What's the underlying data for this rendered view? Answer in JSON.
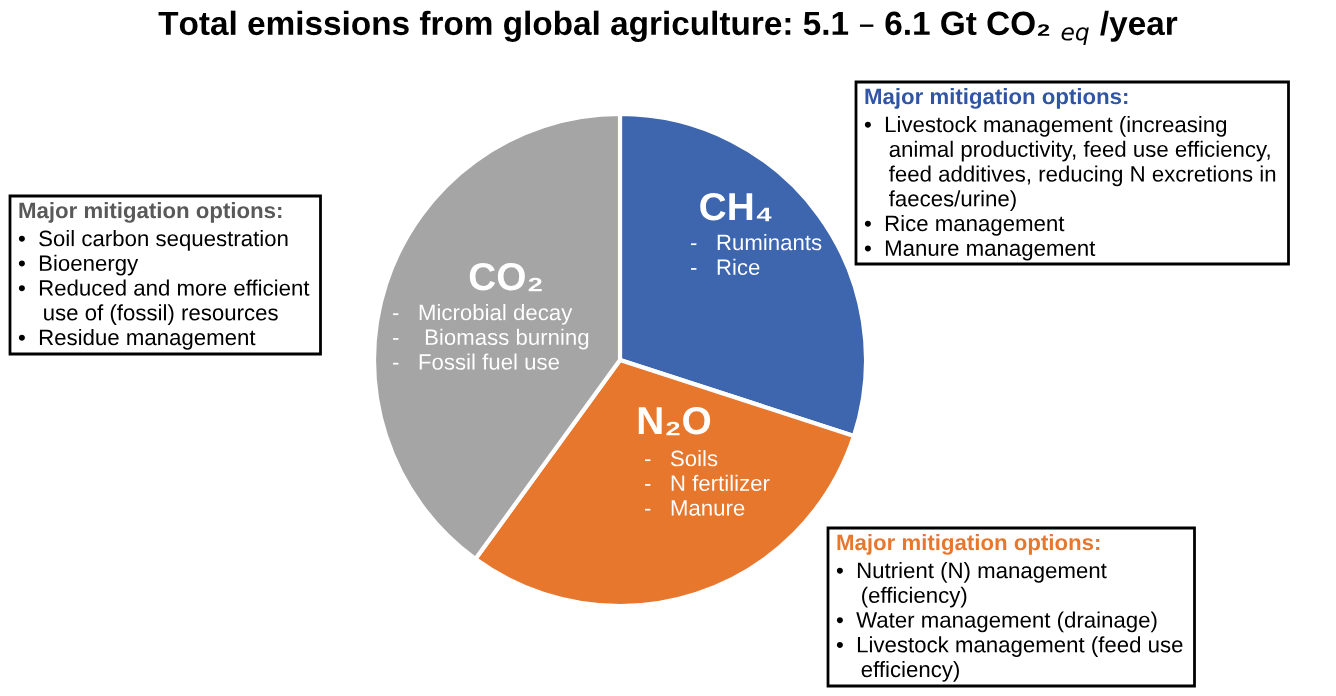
{
  "chart_data": {
    "type": "pie",
    "title": "Total emissions from global agriculture: 5.1 – 6.1 Gt CO₂ $_{eq}$ /year",
    "categories": [
      "CH₄",
      "N₂O",
      "CO₂"
    ],
    "values": [
      30,
      30,
      40
    ],
    "colors": [
      "#3d66ae",
      "#e8772e",
      "#a5a5a5"
    ],
    "annotations": [
      "-   Ruminants\n-   Rice",
      "-   Soils\n-   N fertilizer\n-   Manure",
      "-   Microbial decay\n-    Biomass burning\n-   Fossil fuel use",
      "Major mitigation options:",
      "•  Soil carbon sequestration\n•  Bioenergy\n•  Reduced and more efficient\n    use of (fossil) resources\n•  Residue management",
      "Major mitigation options:",
      "•  Livestock management (increasing\n    animal productivity, feed use efficiency,\n    feed additives, reducing N excretions in\n    faeces/urine)\n•  Rice management\n•  Manure management",
      "Major mitigation options:",
      "•  Nutrient (N) management\n    (efficiency)\n•  Water management (drainage)\n•  Livestock management (feed use\n    efficiency)"
    ]
  }
}
